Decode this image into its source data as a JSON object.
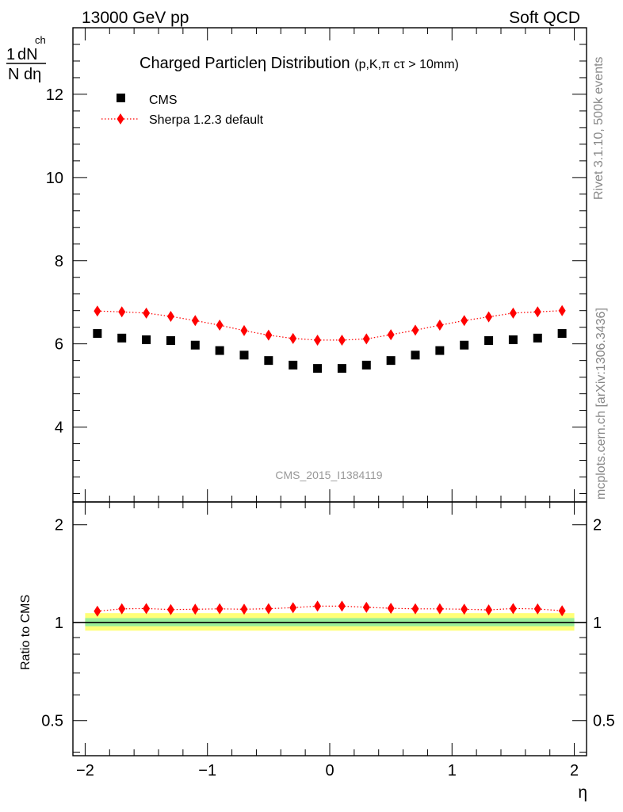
{
  "header": {
    "left": "13000 GeV pp",
    "right": "Soft QCD"
  },
  "side_labels": {
    "rivet": "Rivet 3.1.10,  500k events",
    "mcplots": "mcplots.cern.ch [arXiv:1306.3436]"
  },
  "watermark": "CMS_2015_I1384119",
  "chart_data": [
    {
      "type": "scatter",
      "panel": "main",
      "title": "Charged Particleη Distribution",
      "title_suffix": "(p,K,π cτ > 10mm)",
      "ylabel": {
        "num": "1",
        "num2": "dN",
        "num2_sub": "ch",
        "den": "N dη"
      },
      "xlim": [
        -2.1,
        2.1
      ],
      "ylim": [
        2.2,
        13.6
      ],
      "yticks": [
        4,
        6,
        8,
        10,
        12
      ],
      "legend": {
        "position": "top-left"
      },
      "series": [
        {
          "name": "CMS",
          "color": "#000000",
          "marker": "square",
          "x": [
            -1.9,
            -1.7,
            -1.5,
            -1.3,
            -1.1,
            -0.9,
            -0.7,
            -0.5,
            -0.3,
            -0.1,
            0.1,
            0.3,
            0.5,
            0.7,
            0.9,
            1.1,
            1.3,
            1.5,
            1.7,
            1.9
          ],
          "y": [
            6.25,
            6.14,
            6.1,
            6.08,
            5.97,
            5.84,
            5.73,
            5.6,
            5.49,
            5.41,
            5.41,
            5.49,
            5.6,
            5.73,
            5.84,
            5.97,
            6.08,
            6.1,
            6.14,
            6.25
          ]
        },
        {
          "name": "Sherpa 1.2.3 default",
          "color": "#ff0000",
          "marker": "diamond",
          "line": "dotted",
          "x": [
            -1.9,
            -1.7,
            -1.5,
            -1.3,
            -1.1,
            -0.9,
            -0.7,
            -0.5,
            -0.3,
            -0.1,
            0.1,
            0.3,
            0.5,
            0.7,
            0.9,
            1.1,
            1.3,
            1.5,
            1.7,
            1.9
          ],
          "y": [
            6.79,
            6.77,
            6.74,
            6.66,
            6.56,
            6.45,
            6.32,
            6.21,
            6.13,
            6.09,
            6.09,
            6.12,
            6.22,
            6.33,
            6.45,
            6.56,
            6.65,
            6.74,
            6.77,
            6.8
          ]
        }
      ]
    },
    {
      "type": "scatter",
      "panel": "ratio",
      "xlabel": "η",
      "ylabel": "Ratio to CMS",
      "xlim": [
        -2.1,
        2.1
      ],
      "ylim": [
        0.39,
        2.35
      ],
      "yscale": "log",
      "xticks": [
        -2,
        -1,
        0,
        1,
        2
      ],
      "xtick_labels": [
        "−2",
        "−1",
        "0",
        "1",
        "2"
      ],
      "yticks": [
        0.5,
        1,
        2
      ],
      "ytick_labels": [
        "0.5",
        "1",
        "2"
      ],
      "bands": [
        {
          "color": "#ffff77",
          "lo": 0.945,
          "hi": 1.07
        },
        {
          "color": "#99ee99",
          "lo": 0.975,
          "hi": 1.033
        }
      ],
      "reference_line": 1,
      "series": [
        {
          "name": "Sherpa 1.2.3 default",
          "color": "#ff0000",
          "marker": "diamond",
          "line": "dotted",
          "x": [
            -1.9,
            -1.7,
            -1.5,
            -1.3,
            -1.1,
            -0.9,
            -0.7,
            -0.5,
            -0.3,
            -0.1,
            0.1,
            0.3,
            0.5,
            0.7,
            0.9,
            1.1,
            1.3,
            1.5,
            1.7,
            1.9
          ],
          "y": [
            1.085,
            1.103,
            1.105,
            1.097,
            1.1,
            1.103,
            1.1,
            1.104,
            1.112,
            1.124,
            1.124,
            1.115,
            1.107,
            1.103,
            1.103,
            1.1,
            1.095,
            1.105,
            1.102,
            1.088
          ]
        }
      ]
    }
  ]
}
